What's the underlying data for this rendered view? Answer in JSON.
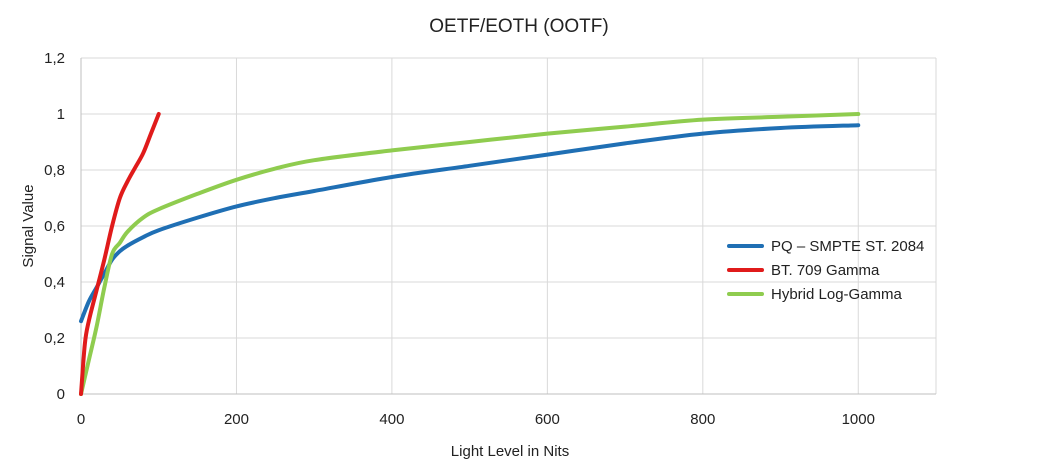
{
  "chart_data": {
    "type": "line",
    "title": "OETF/EOTH (OOTF)",
    "xlabel": "Light Level in Nits",
    "ylabel": "Signal Value",
    "xlim": [
      0,
      1100
    ],
    "ylim": [
      0,
      1.2
    ],
    "x_ticks": [
      0,
      200,
      400,
      600,
      800,
      1000
    ],
    "x_tick_labels": [
      "0",
      "200",
      "400",
      "600",
      "800",
      "1000"
    ],
    "y_ticks": [
      0,
      0.2,
      0.4,
      0.6,
      0.8,
      1,
      1.2
    ],
    "y_tick_labels": [
      "0",
      "0,2",
      "0,4",
      "0,6",
      "0,8",
      "1",
      "1,2"
    ],
    "grid": true,
    "legend_position": "right",
    "series": [
      {
        "name": "PQ – SMPTE ST. 2084",
        "color": "#1f6fb4",
        "x": [
          0,
          10,
          20,
          30,
          40,
          50,
          60,
          80,
          100,
          150,
          200,
          250,
          300,
          400,
          500,
          600,
          700,
          800,
          900,
          1000
        ],
        "y": [
          0.26,
          0.33,
          0.38,
          0.43,
          0.48,
          0.51,
          0.53,
          0.56,
          0.585,
          0.63,
          0.67,
          0.7,
          0.725,
          0.775,
          0.815,
          0.855,
          0.895,
          0.93,
          0.95,
          0.96
        ]
      },
      {
        "name": "BT. 709 Gamma",
        "color": "#e01b1b",
        "x": [
          0,
          5,
          10,
          20,
          30,
          40,
          50,
          60,
          70,
          80,
          90,
          100
        ],
        "y": [
          0,
          0.18,
          0.26,
          0.37,
          0.48,
          0.6,
          0.7,
          0.76,
          0.81,
          0.86,
          0.93,
          1.0
        ]
      },
      {
        "name": "Hybrid Log-Gamma",
        "color": "#8fcc4f",
        "x": [
          0,
          10,
          20,
          30,
          40,
          50,
          60,
          80,
          100,
          150,
          200,
          250,
          300,
          400,
          500,
          600,
          700,
          800,
          900,
          1000
        ],
        "y": [
          0,
          0.12,
          0.24,
          0.38,
          0.5,
          0.54,
          0.58,
          0.63,
          0.66,
          0.715,
          0.765,
          0.805,
          0.835,
          0.87,
          0.9,
          0.93,
          0.955,
          0.98,
          0.99,
          1.0
        ]
      }
    ]
  }
}
